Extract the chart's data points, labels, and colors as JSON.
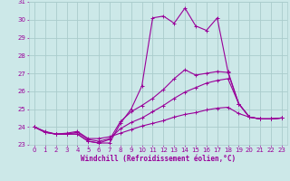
{
  "xlabel": "Windchill (Refroidissement éolien,°C)",
  "background_color": "#cce8e8",
  "grid_color": "#aacccc",
  "line_color": "#990099",
  "xlim": [
    -0.5,
    23.5
  ],
  "ylim": [
    23,
    31
  ],
  "yticks": [
    23,
    24,
    25,
    26,
    27,
    28,
    29,
    30,
    31
  ],
  "xticks": [
    0,
    1,
    2,
    3,
    4,
    5,
    6,
    7,
    8,
    9,
    10,
    11,
    12,
    13,
    14,
    15,
    16,
    17,
    18,
    19,
    20,
    21,
    22,
    23
  ],
  "lines": [
    {
      "x": [
        0,
        1,
        2,
        3,
        4,
        5,
        6,
        7,
        8,
        9,
        10,
        11,
        12,
        13,
        14,
        15,
        16,
        17,
        18,
        19,
        20,
        21,
        22,
        23
      ],
      "y": [
        24.0,
        23.7,
        23.6,
        23.6,
        23.6,
        23.2,
        23.1,
        23.1,
        24.2,
        25.0,
        26.3,
        30.1,
        30.2,
        29.8,
        30.65,
        29.65,
        29.4,
        30.1,
        27.1,
        25.3,
        24.55,
        24.45,
        24.45,
        24.5
      ]
    },
    {
      "x": [
        0,
        1,
        2,
        3,
        4,
        5,
        6,
        7,
        8,
        9,
        10,
        11,
        12,
        13,
        14,
        15,
        16,
        17,
        18,
        19,
        20,
        21,
        22,
        23
      ],
      "y": [
        24.0,
        23.7,
        23.6,
        23.6,
        23.6,
        23.2,
        23.1,
        23.3,
        24.3,
        24.85,
        25.2,
        25.6,
        26.1,
        26.7,
        27.2,
        26.9,
        27.0,
        27.1,
        27.05,
        25.3,
        24.55,
        24.45,
        24.45,
        24.5
      ]
    },
    {
      "x": [
        0,
        1,
        2,
        3,
        4,
        5,
        6,
        7,
        8,
        9,
        10,
        11,
        12,
        13,
        14,
        15,
        16,
        17,
        18,
        19,
        20,
        21,
        22,
        23
      ],
      "y": [
        24.0,
        23.7,
        23.6,
        23.6,
        23.7,
        23.3,
        23.2,
        23.35,
        23.9,
        24.25,
        24.5,
        24.85,
        25.2,
        25.6,
        25.95,
        26.2,
        26.45,
        26.6,
        26.7,
        25.3,
        24.55,
        24.45,
        24.45,
        24.5
      ]
    },
    {
      "x": [
        0,
        1,
        2,
        3,
        4,
        5,
        6,
        7,
        8,
        9,
        10,
        11,
        12,
        13,
        14,
        15,
        16,
        17,
        18,
        19,
        20,
        21,
        22,
        23
      ],
      "y": [
        24.0,
        23.75,
        23.6,
        23.65,
        23.75,
        23.35,
        23.35,
        23.45,
        23.65,
        23.85,
        24.05,
        24.2,
        24.35,
        24.55,
        24.7,
        24.8,
        24.95,
        25.05,
        25.1,
        24.75,
        24.55,
        24.45,
        24.45,
        24.5
      ]
    }
  ]
}
